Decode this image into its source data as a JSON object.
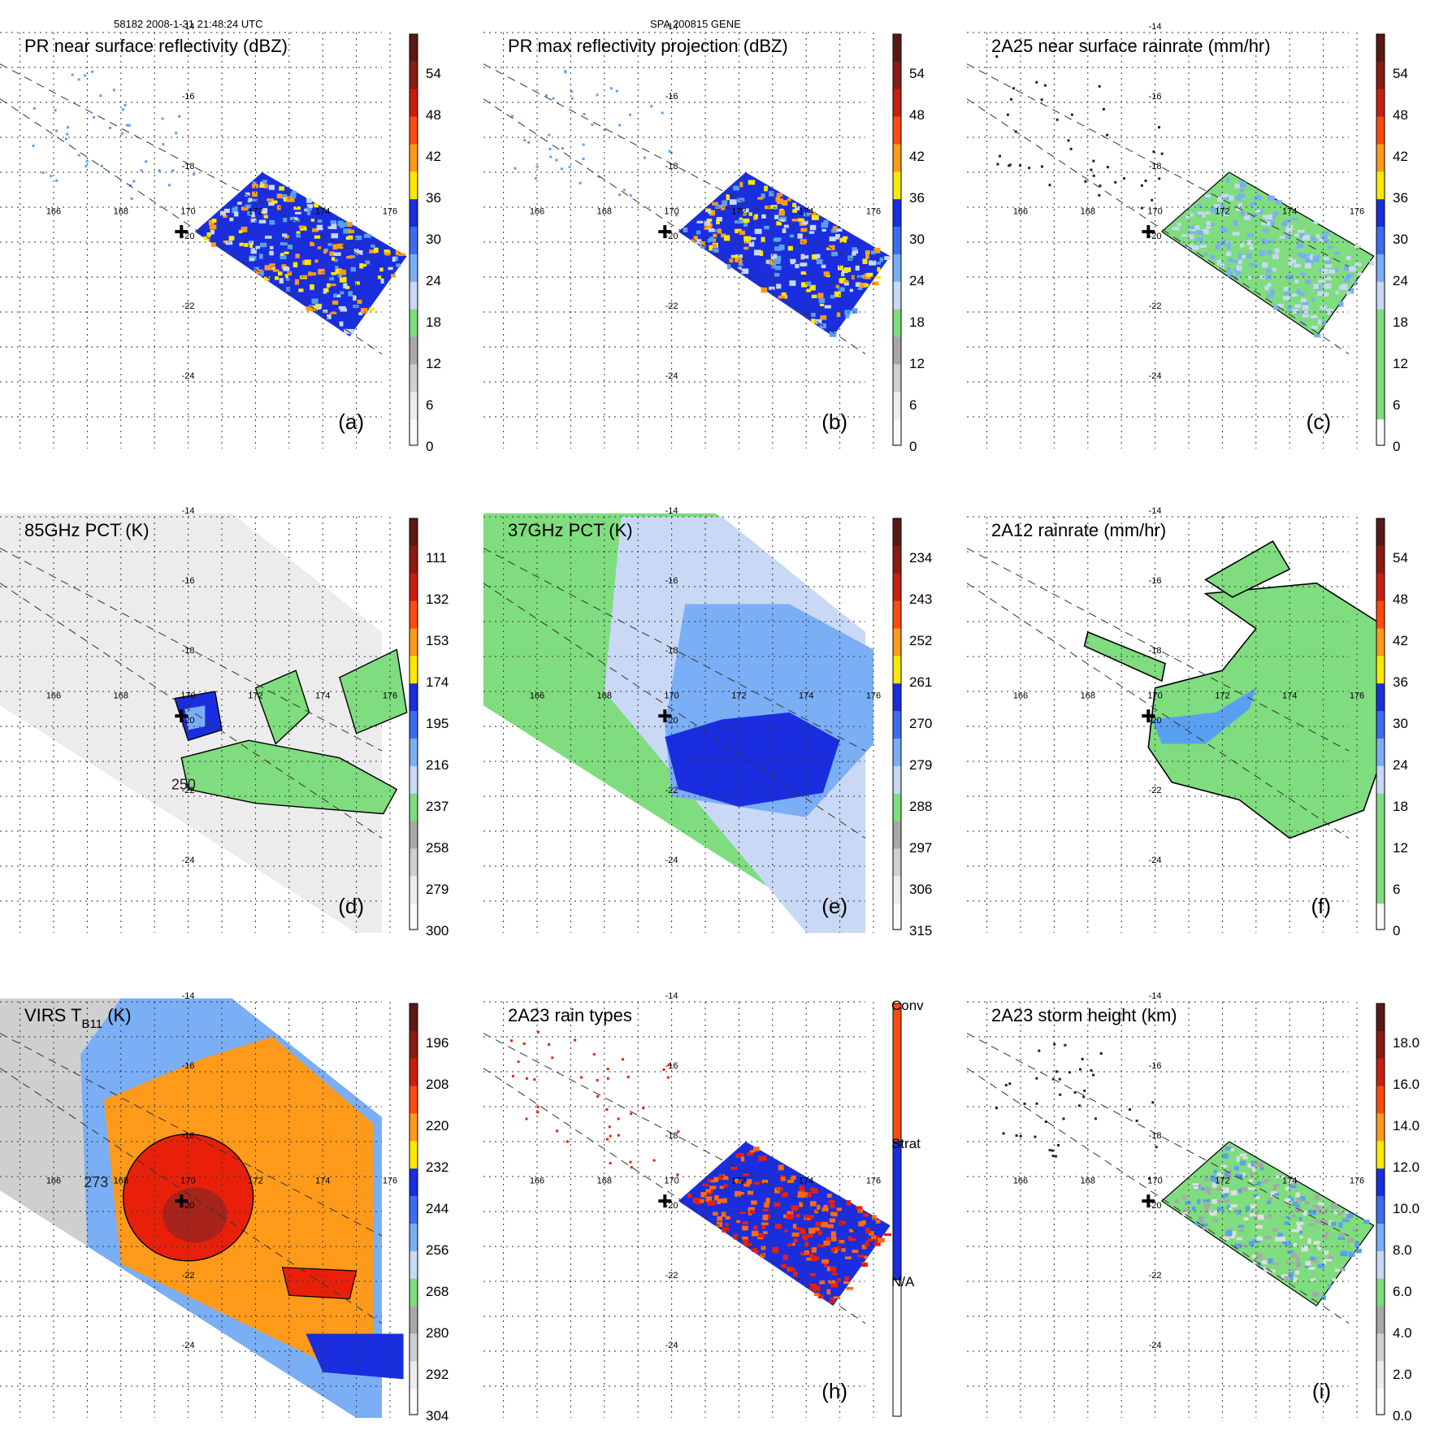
{
  "header": {
    "orbit_time": "58182 2008-1-31 21:48:24 UTC",
    "storm_id": "SPA 200815 GENE"
  },
  "grid": {
    "lon_ticks": [
      "166",
      "168",
      "170",
      "172",
      "174",
      "176"
    ],
    "lat_ticks": [
      "-14",
      "-16",
      "-18",
      "-20",
      "-22",
      "-24"
    ]
  },
  "colors": {
    "green": "#7fdc7f",
    "lightblue": "#c8d8f5",
    "midblue": "#5aa0f0",
    "blue": "#1a2ee0",
    "yellow": "#ffe800",
    "orange": "#ff9a1a",
    "red": "#e8200a",
    "darkred": "#7a1a10",
    "gray": "#a8a8a8",
    "lightgray": "#dedede"
  },
  "panels": [
    {
      "id": "a",
      "title": "PR near surface reflectivity (dBZ)",
      "label": "(a)",
      "colorbar_labels": [
        "54",
        "48",
        "42",
        "36",
        "30",
        "24",
        "18",
        "12",
        "6",
        "0"
      ],
      "scheme": "pr"
    },
    {
      "id": "b",
      "title": "PR max reflectivity projection (dBZ)",
      "label": "(b)",
      "colorbar_labels": [
        "54",
        "48",
        "42",
        "36",
        "30",
        "24",
        "18",
        "12",
        "6",
        "0"
      ],
      "scheme": "pr"
    },
    {
      "id": "c",
      "title": "2A25 near surface rainrate (mm/hr)",
      "label": "(c)",
      "colorbar_labels": [
        "54",
        "48",
        "42",
        "36",
        "30",
        "24",
        "18",
        "12",
        "6",
        "0"
      ],
      "scheme": "rain"
    },
    {
      "id": "d",
      "title": "85GHz PCT (K)",
      "label": "(d)",
      "colorbar_labels": [
        "111",
        "132",
        "153",
        "174",
        "195",
        "216",
        "237",
        "258",
        "279",
        "300"
      ],
      "contour_label": "250",
      "scheme": "pct85"
    },
    {
      "id": "e",
      "title": "37GHz PCT (K)",
      "label": "(e)",
      "colorbar_labels": [
        "234",
        "243",
        "252",
        "261",
        "270",
        "279",
        "288",
        "297",
        "306",
        "315"
      ],
      "scheme": "pct37"
    },
    {
      "id": "f",
      "title": "2A12 rainrate (mm/hr)",
      "label": "(f)",
      "colorbar_labels": [
        "54",
        "48",
        "42",
        "36",
        "30",
        "24",
        "18",
        "12",
        "6",
        "0"
      ],
      "scheme": "rain12"
    },
    {
      "id": "g",
      "title": "VIRS T",
      "title_sub": "B11",
      "title_end": " (K)",
      "label": "",
      "colorbar_labels": [
        "196",
        "208",
        "220",
        "232",
        "244",
        "256",
        "268",
        "280",
        "292",
        "304"
      ],
      "contour_label": "273",
      "scheme": "virs"
    },
    {
      "id": "h",
      "title": "2A23 rain types",
      "label": "(h)",
      "colorbar_labels": [
        "Conv",
        "Strat",
        "N/A"
      ],
      "scheme": "types"
    },
    {
      "id": "i",
      "title": "2A23 storm height (km)",
      "label": "(i)",
      "colorbar_labels": [
        "18.0",
        "16.0",
        "14.0",
        "12.0",
        "10.0",
        "8.0",
        "6.0",
        "4.0",
        "2.0",
        "0.0"
      ],
      "scheme": "height"
    }
  ]
}
